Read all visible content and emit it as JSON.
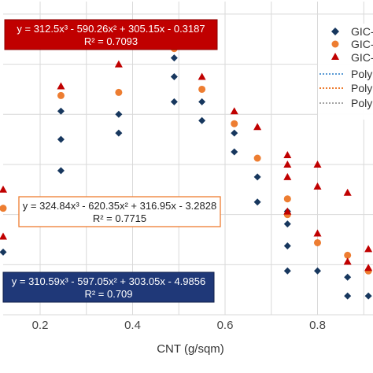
{
  "chart_data": {
    "type": "scatter",
    "xlabel": "CNT (g/sqm)",
    "ylabel": "",
    "xlim": [
      0.12,
      0.92
    ],
    "ylim": [
      0.0,
      1.0
    ],
    "x_ticks": [
      "0.2",
      "0.4",
      "0.6",
      "0.8"
    ],
    "grid": true,
    "legend_placement": "right",
    "series": [
      {
        "name": "GIC-",
        "marker": "diamond",
        "color": "#17375e",
        "points": [
          [
            0.12,
            0.2
          ],
          [
            0.245,
            0.46
          ],
          [
            0.245,
            0.56
          ],
          [
            0.245,
            0.65
          ],
          [
            0.37,
            0.58
          ],
          [
            0.37,
            0.64
          ],
          [
            0.49,
            0.68
          ],
          [
            0.49,
            0.76
          ],
          [
            0.49,
            0.82
          ],
          [
            0.55,
            0.62
          ],
          [
            0.55,
            0.68
          ],
          [
            0.62,
            0.52
          ],
          [
            0.62,
            0.58
          ],
          [
            0.67,
            0.36
          ],
          [
            0.67,
            0.44
          ],
          [
            0.735,
            0.14
          ],
          [
            0.735,
            0.22
          ],
          [
            0.735,
            0.29
          ],
          [
            0.735,
            0.32
          ],
          [
            0.735,
            0.33
          ],
          [
            0.8,
            0.14
          ],
          [
            0.8,
            0.23
          ],
          [
            0.865,
            0.06
          ],
          [
            0.865,
            0.12
          ],
          [
            0.91,
            0.06
          ]
        ]
      },
      {
        "name": "GIC-",
        "marker": "circle",
        "color": "#ed7d31",
        "points": [
          [
            0.12,
            0.34
          ],
          [
            0.245,
            0.7
          ],
          [
            0.37,
            0.71
          ],
          [
            0.49,
            0.85
          ],
          [
            0.55,
            0.72
          ],
          [
            0.62,
            0.61
          ],
          [
            0.67,
            0.5
          ],
          [
            0.735,
            0.37
          ],
          [
            0.735,
            0.32
          ],
          [
            0.8,
            0.23
          ],
          [
            0.865,
            0.19
          ],
          [
            0.91,
            0.14
          ]
        ]
      },
      {
        "name": "GIC-",
        "marker": "triangle",
        "color": "#c00000",
        "points": [
          [
            0.12,
            0.25
          ],
          [
            0.12,
            0.4
          ],
          [
            0.245,
            0.73
          ],
          [
            0.37,
            0.8
          ],
          [
            0.49,
            0.86
          ],
          [
            0.55,
            0.76
          ],
          [
            0.62,
            0.65
          ],
          [
            0.67,
            0.6
          ],
          [
            0.735,
            0.51
          ],
          [
            0.735,
            0.48
          ],
          [
            0.735,
            0.44
          ],
          [
            0.735,
            0.33
          ],
          [
            0.8,
            0.48
          ],
          [
            0.8,
            0.41
          ],
          [
            0.8,
            0.26
          ],
          [
            0.865,
            0.39
          ],
          [
            0.865,
            0.17
          ],
          [
            0.91,
            0.21
          ],
          [
            0.91,
            0.15
          ]
        ]
      }
    ],
    "trendlines": [
      {
        "name": "Poly",
        "color": "#5b9bd5",
        "coefficients": [
          310.59,
          -597.05,
          303.05,
          -4.9856
        ],
        "equation": "y = 310.59x³ - 597.05x² + 303.05x - 4.9856",
        "r2": "R² = 0.709"
      },
      {
        "name": "Poly",
        "color": "#ed7d31",
        "coefficients": [
          324.84,
          -620.35,
          316.95,
          -3.2828
        ],
        "equation": "y = 324.84x³ - 620.35x² + 316.95x - 3.2828",
        "r2": "R² = 0.7715"
      },
      {
        "name": "Poly",
        "color": "#a5a5a5",
        "coefficients": [
          312.5,
          -590.26,
          305.15,
          -0.3187
        ],
        "equation": "y = 312.5x³ - 590.26x² + 305.15x - 0.3187",
        "r2": "R² = 0.7093"
      }
    ],
    "annotation_styles": {
      "red_box_bg": "#c00000",
      "orange_box_border": "#ed7d31",
      "navy_box_bg": "#1f3878"
    }
  }
}
